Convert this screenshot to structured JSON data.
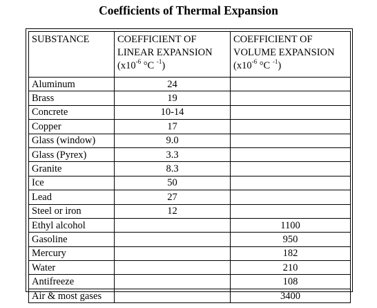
{
  "title": "Coefficients of Thermal Expansion",
  "headers": {
    "substance": "SUBSTANCE",
    "linear": {
      "line1": "COEFFICIENT OF",
      "line2": "LINEAR EXPANSION",
      "unit_open": "(x10",
      "exp1": "-6",
      "mid": " °C ",
      "exp2": "-1",
      "close": ")"
    },
    "volume": {
      "line1": "COEFFICIENT OF",
      "line2": "VOLUME EXPANSION",
      "unit_open": "(x10",
      "exp1": "-6",
      "mid": " °C ",
      "exp2": "-1",
      "close": ")"
    }
  },
  "rows": [
    {
      "substance": "Aluminum",
      "linear": "24",
      "volume": ""
    },
    {
      "substance": "Brass",
      "linear": "19",
      "volume": ""
    },
    {
      "substance": "Concrete",
      "linear": "10-14",
      "volume": ""
    },
    {
      "substance": "Copper",
      "linear": "17",
      "volume": ""
    },
    {
      "substance": "Glass (window)",
      "linear": "9.0",
      "volume": ""
    },
    {
      "substance": "Glass (Pyrex)",
      "linear": "3.3",
      "volume": ""
    },
    {
      "substance": "Granite",
      "linear": "8.3",
      "volume": ""
    },
    {
      "substance": "Ice",
      "linear": "50",
      "volume": ""
    },
    {
      "substance": "Lead",
      "linear": "27",
      "volume": ""
    },
    {
      "substance": "Steel or iron",
      "linear": "12",
      "volume": ""
    },
    {
      "substance": "Ethyl alcohol",
      "linear": "",
      "volume": "1100"
    },
    {
      "substance": "Gasoline",
      "linear": "",
      "volume": "950"
    },
    {
      "substance": "Mercury",
      "linear": "",
      "volume": "182"
    },
    {
      "substance": "Water",
      "linear": "",
      "volume": "210"
    },
    {
      "substance": "Antifreeze",
      "linear": "",
      "volume": "108"
    },
    {
      "substance": "Air & most gases",
      "linear": "",
      "volume": "3400"
    }
  ]
}
